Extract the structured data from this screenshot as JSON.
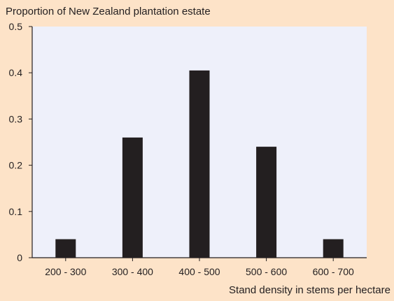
{
  "colors": {
    "background": "#fde3c8",
    "plot_area": "#eef0fa",
    "bar": "#231f20",
    "axis": "#231f20",
    "text": "#231f20"
  },
  "chart_data": {
    "type": "bar",
    "title": "",
    "ylabel": "Proportion of New Zealand plantation estate",
    "xlabel": "Stand density in stems per hectare",
    "categories": [
      "200 - 300",
      "300 - 400",
      "400 - 500",
      "500 - 600",
      "600 - 700"
    ],
    "series": [
      {
        "values": [
          0.04,
          0.26,
          0.405,
          0.24,
          0.04
        ]
      }
    ],
    "ylim": [
      0,
      0.5
    ],
    "yticks": [
      0,
      0.1,
      0.2,
      0.3,
      0.4,
      0.5
    ],
    "ytick_labels": [
      "0",
      "0.1",
      "0.2",
      "0.3",
      "0.4",
      "0.5"
    ],
    "grid": false,
    "legend": "none"
  }
}
